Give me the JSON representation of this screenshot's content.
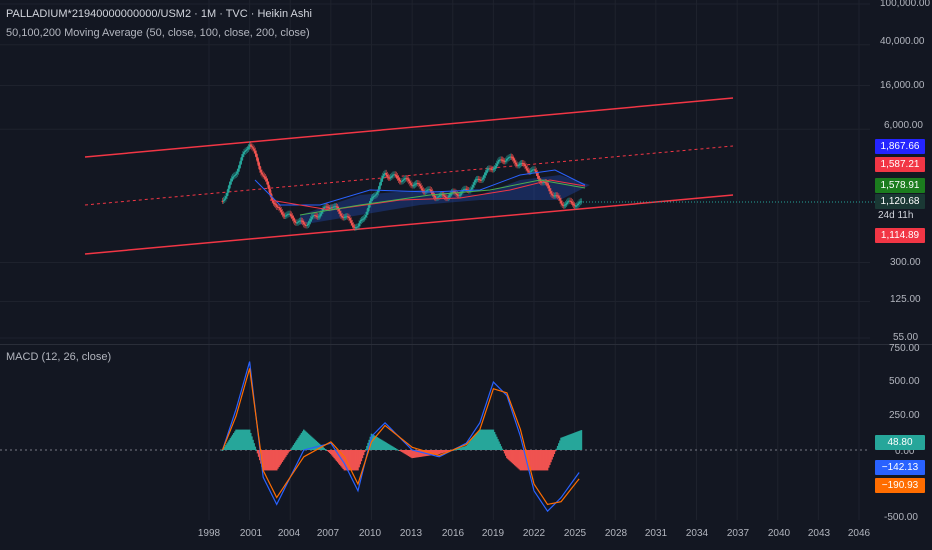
{
  "header": {
    "title": "PALLADIUM*21940000000000/USM2 · 1M · TVC · Heikin Ashi",
    "indicator": "50,100,200 Moving Average (50, close, 100, close, 200, close)",
    "macd_label": "MACD (12, 26, close)"
  },
  "price_axis": {
    "ticks": [
      "100,000.00",
      "40,000.00",
      "16,000.00",
      "6,000.00",
      "300.00",
      "125.00",
      "55.00"
    ]
  },
  "macd_axis": {
    "ticks": [
      "750.00",
      "500.00",
      "250.00",
      "0.00",
      "-500.00"
    ]
  },
  "badges": {
    "ma50": {
      "text": "1,867.66",
      "color": "#2424ff"
    },
    "ma100": {
      "text": "1,587.21",
      "color": "#f23645"
    },
    "ma200": {
      "text": "1,578.91",
      "color": "#1b7c1e"
    },
    "price": {
      "text": "1,120.68",
      "color": "#1a3834"
    },
    "countdown": "24d 11h",
    "low": {
      "text": "1,114.89",
      "color": "#f23645"
    },
    "macd_hist": {
      "text": "48.80",
      "color": "#26a69a"
    },
    "macd_line": {
      "text": "−142.13",
      "color": "#2962ff"
    },
    "signal_line": {
      "text": "−190.93",
      "color": "#ff6d00"
    }
  },
  "time_axis": {
    "labels": [
      "1998",
      "2001",
      "2004",
      "2007",
      "2010",
      "2013",
      "2016",
      "2019",
      "2022",
      "2025",
      "2028",
      "2031",
      "2034",
      "2037",
      "2040",
      "2043",
      "2046"
    ]
  },
  "colors": {
    "background": "#131722",
    "channel": "#f23645",
    "up_candle": "#26a69a",
    "down_candle": "#ef5350",
    "ma50": "#2962ff",
    "ma100": "#f23645",
    "ma200": "#4caf50",
    "macd": "#2962ff",
    "signal": "#ff6d00"
  },
  "chart_data": {
    "type": "line",
    "title": "PALLADIUM*21940000000000/USM2 · 1M · TVC · Heikin Ashi",
    "y_scale": "log",
    "x": [
      1999,
      2001,
      2003,
      2005,
      2007,
      2009,
      2011,
      2013,
      2015,
      2017,
      2019,
      2020,
      2022,
      2024,
      2025.5
    ],
    "series": [
      {
        "name": "Heikin Ashi close",
        "values": [
          1200,
          4500,
          1000,
          700,
          1100,
          650,
          2200,
          1800,
          1300,
          1500,
          2600,
          3200,
          2300,
          1150,
          1120
        ]
      }
    ],
    "last_values": {
      "ma50": 1867.66,
      "ma100": 1587.21,
      "ma200": 1578.91,
      "price": 1120.68,
      "low": 1114.89
    },
    "macd": {
      "name": "MACD (12, 26, close)",
      "x": [
        1999,
        2000,
        2001,
        2002,
        2003,
        2005,
        2007,
        2008,
        2009,
        2010,
        2011,
        2013,
        2015,
        2016,
        2017,
        2018,
        2019,
        2020,
        2021,
        2022,
        2023,
        2024,
        2025.5
      ],
      "macd_line": [
        0,
        300,
        650,
        -200,
        -400,
        0,
        50,
        -100,
        -300,
        100,
        200,
        0,
        -50,
        0,
        50,
        200,
        500,
        400,
        100,
        -300,
        -450,
        -350,
        -142.13
      ],
      "signal_line": [
        0,
        250,
        600,
        -150,
        -350,
        -50,
        60,
        -50,
        -250,
        60,
        180,
        20,
        -40,
        0,
        40,
        150,
        450,
        420,
        150,
        -250,
        -400,
        -380,
        -190.93
      ],
      "histogram_last": 48.8
    }
  }
}
